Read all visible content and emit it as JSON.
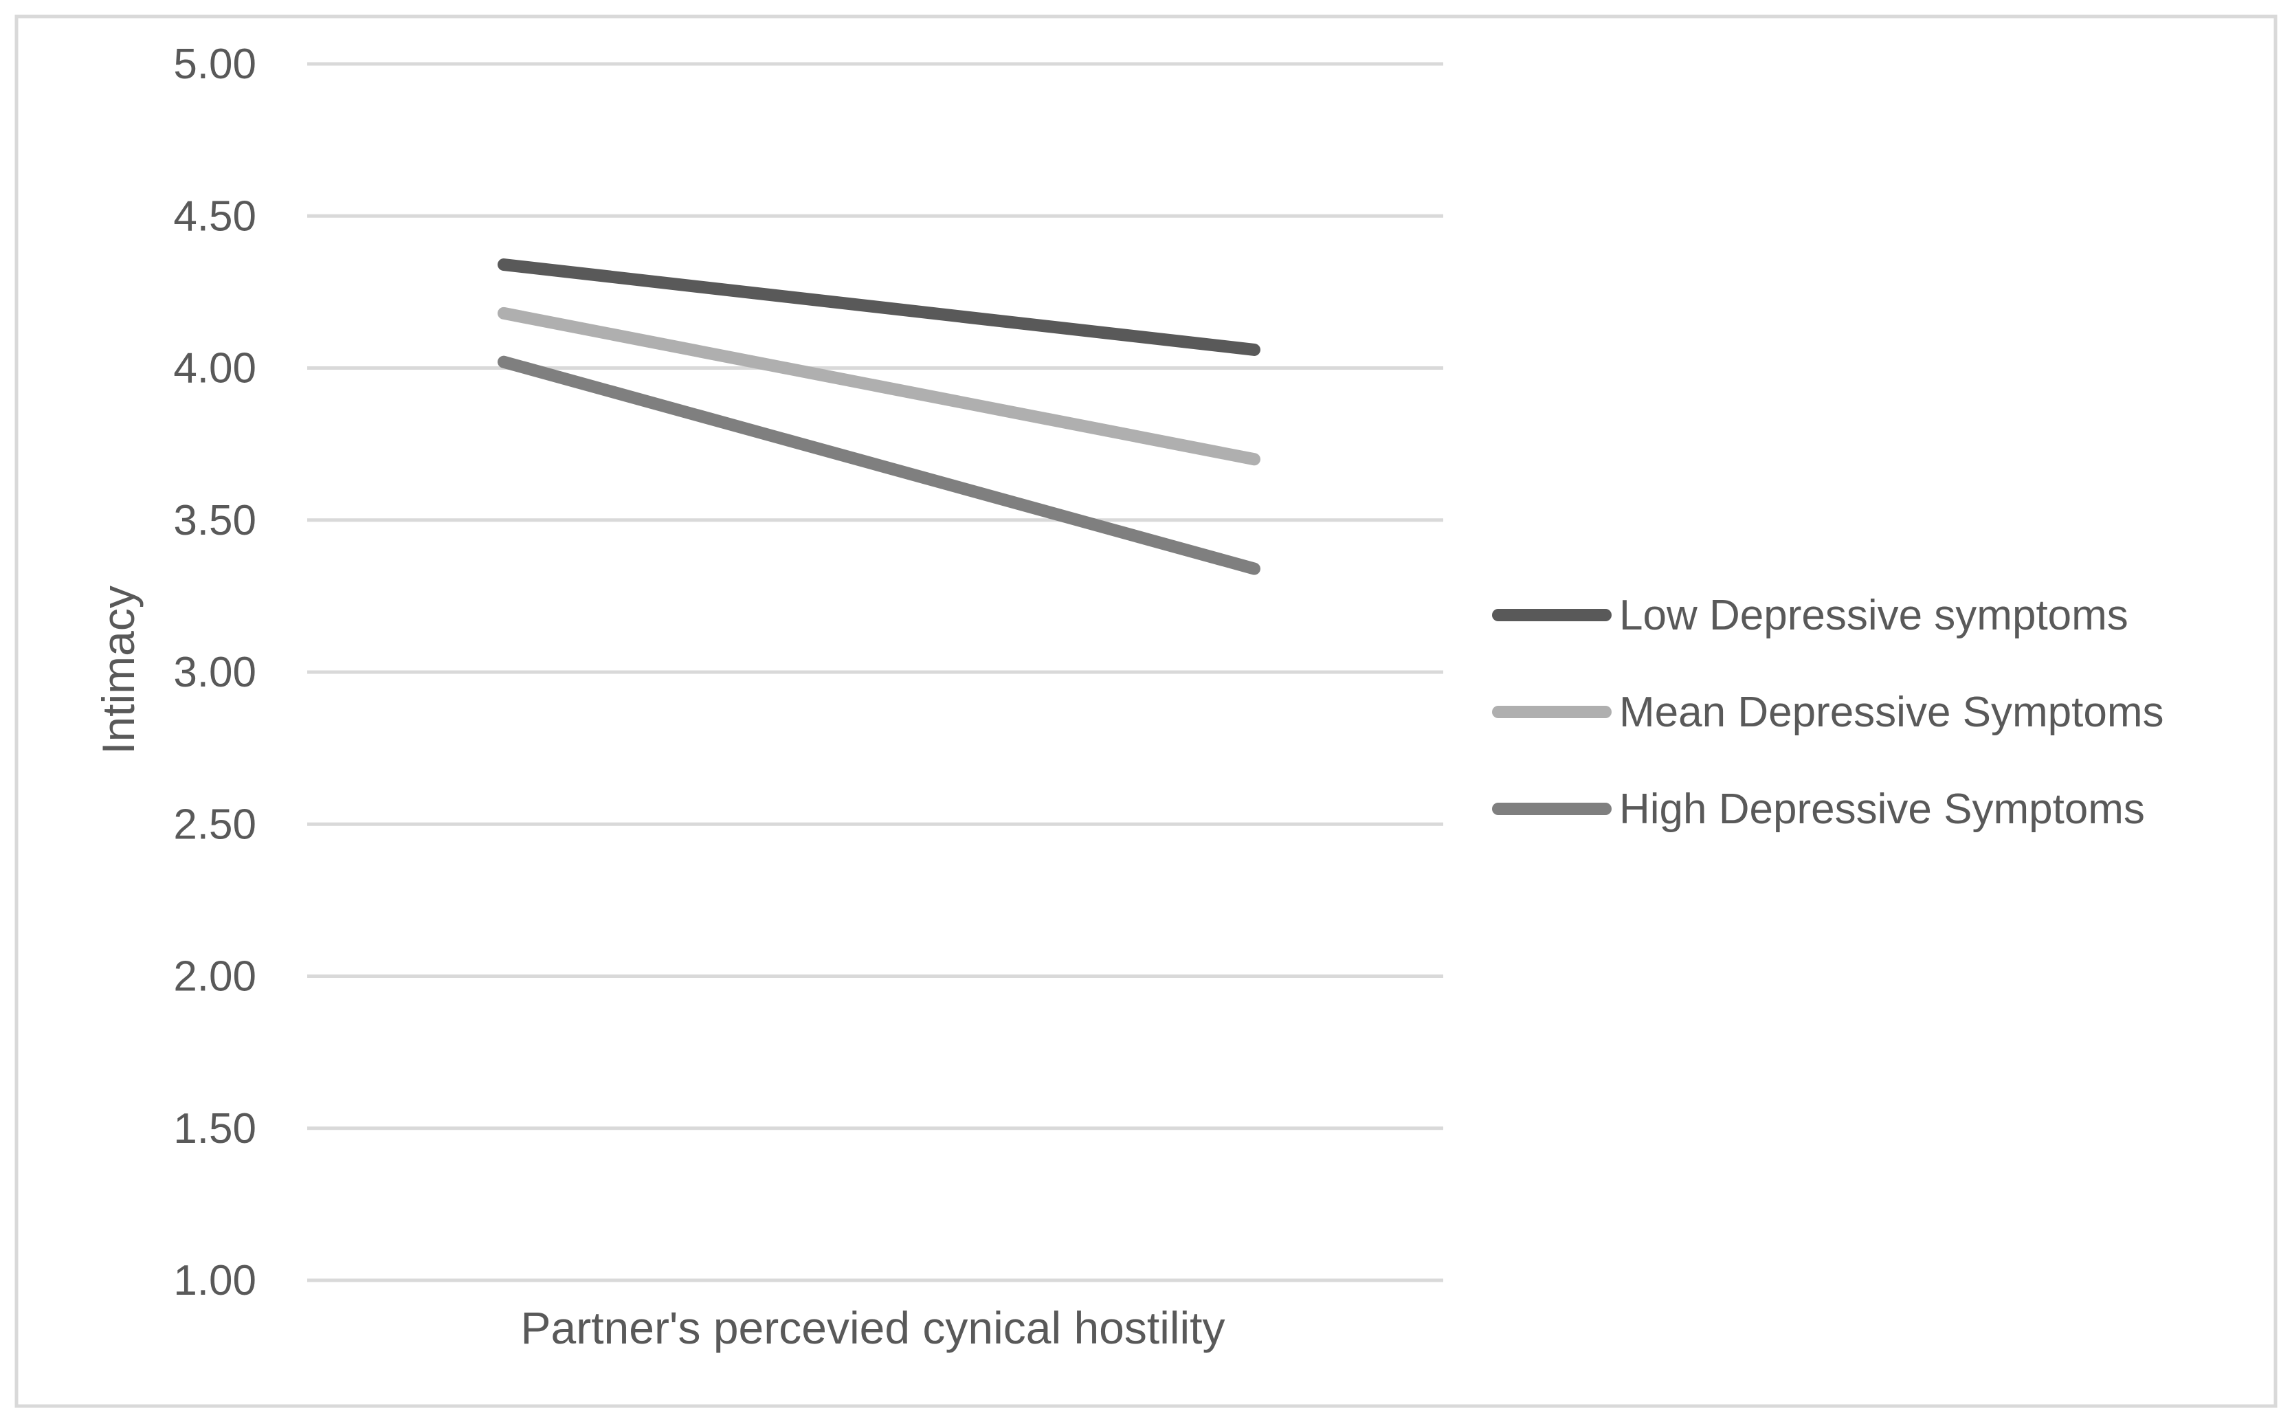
{
  "chart_data": {
    "type": "line",
    "title": "",
    "xlabel": "Partner's percevied cynical hostility",
    "ylabel": "Intimacy",
    "ylim": [
      1.0,
      5.0
    ],
    "yticks": [
      "1.00",
      "1.50",
      "2.00",
      "2.50",
      "3.00",
      "3.50",
      "4.00",
      "4.50",
      "5.00"
    ],
    "grid": true,
    "legend_position": "right",
    "x": [
      1,
      2
    ],
    "series": [
      {
        "name": "Low Depressive symptoms",
        "values": [
          4.34,
          4.06
        ],
        "color": "#595959"
      },
      {
        "name": "Mean Depressive Symptoms",
        "values": [
          4.18,
          3.7
        ],
        "color": "#afafaf"
      },
      {
        "name": "High Depressive Symptoms",
        "values": [
          4.02,
          3.34
        ],
        "color": "#7f7f7f"
      }
    ]
  }
}
